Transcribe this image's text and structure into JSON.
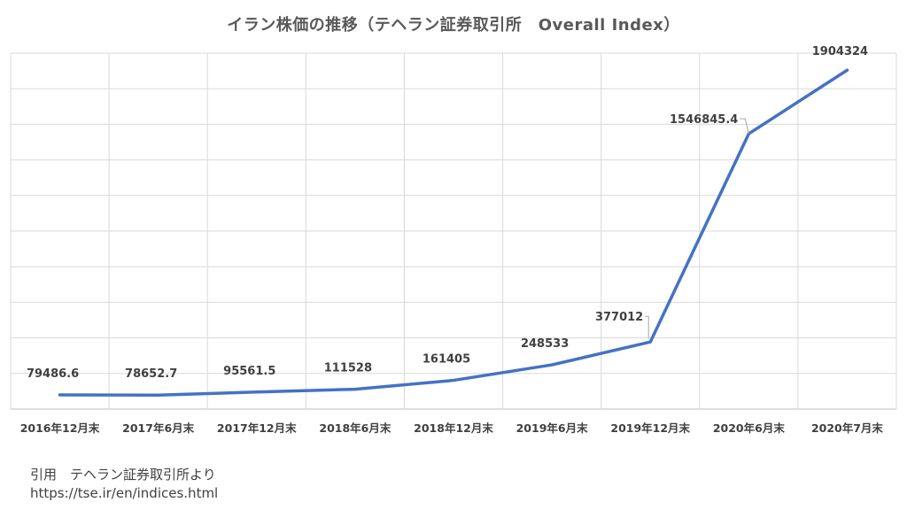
{
  "chart_data": {
    "type": "line",
    "title": "イラン株価の推移（テヘラン証券取引所　Overall Index）",
    "categories": [
      "2016年12月末",
      "2017年6月末",
      "2017年12月末",
      "2018年6月末",
      "2018年12月末",
      "2019年6月末",
      "2019年12月末",
      "2020年6月末",
      "2020年7月末"
    ],
    "series": [
      {
        "values": [
          79486.6,
          78652.7,
          95561.5,
          111528,
          161405,
          248533,
          377012,
          1546845.4,
          1904324
        ],
        "labels": [
          "79486.6",
          "78652.7",
          "95561.5",
          "111528",
          "161405",
          "248533",
          "377012",
          "1546845.4",
          "1904324"
        ],
        "color": "#4472C4"
      }
    ],
    "ylim": [
      0,
      2000000
    ],
    "y_gridlines": 10,
    "grid": true,
    "xlabel": "",
    "ylabel": ""
  },
  "source": {
    "line1": "引用　テヘラン証券取引所より",
    "line2": "https://tse.ir/en/indices.html"
  }
}
